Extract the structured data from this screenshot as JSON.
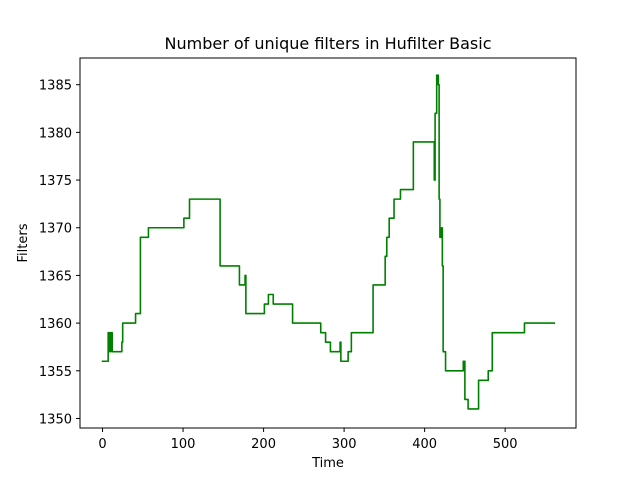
{
  "chart_data": {
    "type": "line",
    "title": "Number of unique filters in Hufilter Basic",
    "xlabel": "Time",
    "ylabel": "Filters",
    "xlim": [
      -28,
      588
    ],
    "ylim": [
      1349,
      1387.8
    ],
    "xticks": [
      0,
      100,
      200,
      300,
      400,
      500
    ],
    "yticks": [
      1350,
      1355,
      1360,
      1365,
      1370,
      1375,
      1380,
      1385
    ],
    "grid": false,
    "color": "#008000",
    "series": [
      {
        "x": [
          0,
          7,
          7,
          9,
          9,
          10,
          10,
          12,
          12,
          24,
          24,
          25,
          25,
          41,
          41,
          47,
          47,
          55,
          55,
          57,
          57,
          101,
          101,
          108,
          108,
          146,
          146,
          170,
          170,
          177,
          177,
          178,
          178,
          201,
          201,
          206,
          206,
          209,
          209,
          212,
          212,
          236,
          236,
          271,
          271,
          277,
          277,
          283,
          283,
          295,
          295,
          296,
          296,
          305,
          305,
          309,
          309,
          336,
          336,
          351,
          351,
          353,
          353,
          356,
          356,
          362,
          362,
          370,
          370,
          380,
          380,
          386,
          386,
          412,
          412,
          413,
          413,
          415,
          415,
          417,
          417,
          418,
          418,
          419,
          419,
          421,
          421,
          422,
          422,
          423,
          423,
          424,
          424,
          426,
          426,
          448,
          448,
          450,
          450,
          454,
          454,
          467,
          467,
          479,
          479,
          481,
          481,
          484,
          484,
          524,
          524,
          532,
          532,
          561
        ],
        "values": [
          1356,
          1356,
          1359,
          1359,
          1357,
          1357,
          1359,
          1359,
          1357,
          1357,
          1358,
          1358,
          1360,
          1360,
          1361,
          1361,
          1369,
          1369,
          1369,
          1369,
          1370,
          1370,
          1371,
          1371,
          1373,
          1373,
          1366,
          1366,
          1364,
          1364,
          1365,
          1365,
          1361,
          1361,
          1362,
          1362,
          1363,
          1363,
          1363,
          1363,
          1362,
          1362,
          1360,
          1360,
          1359,
          1359,
          1358,
          1358,
          1357,
          1357,
          1358,
          1358,
          1356,
          1356,
          1357,
          1357,
          1359,
          1359,
          1364,
          1364,
          1367,
          1367,
          1369,
          1369,
          1371,
          1371,
          1373,
          1373,
          1374,
          1374,
          1374,
          1374,
          1379,
          1379,
          1375,
          1375,
          1382,
          1382,
          1386,
          1386,
          1385,
          1385,
          1373,
          1373,
          1369,
          1369,
          1370,
          1370,
          1366,
          1366,
          1357,
          1357,
          1357,
          1357,
          1355,
          1355,
          1356,
          1356,
          1352,
          1352,
          1351,
          1351,
          1354,
          1354,
          1355,
          1355,
          1355,
          1355,
          1359,
          1359,
          1360,
          1360,
          1360,
          1360
        ]
      }
    ]
  }
}
